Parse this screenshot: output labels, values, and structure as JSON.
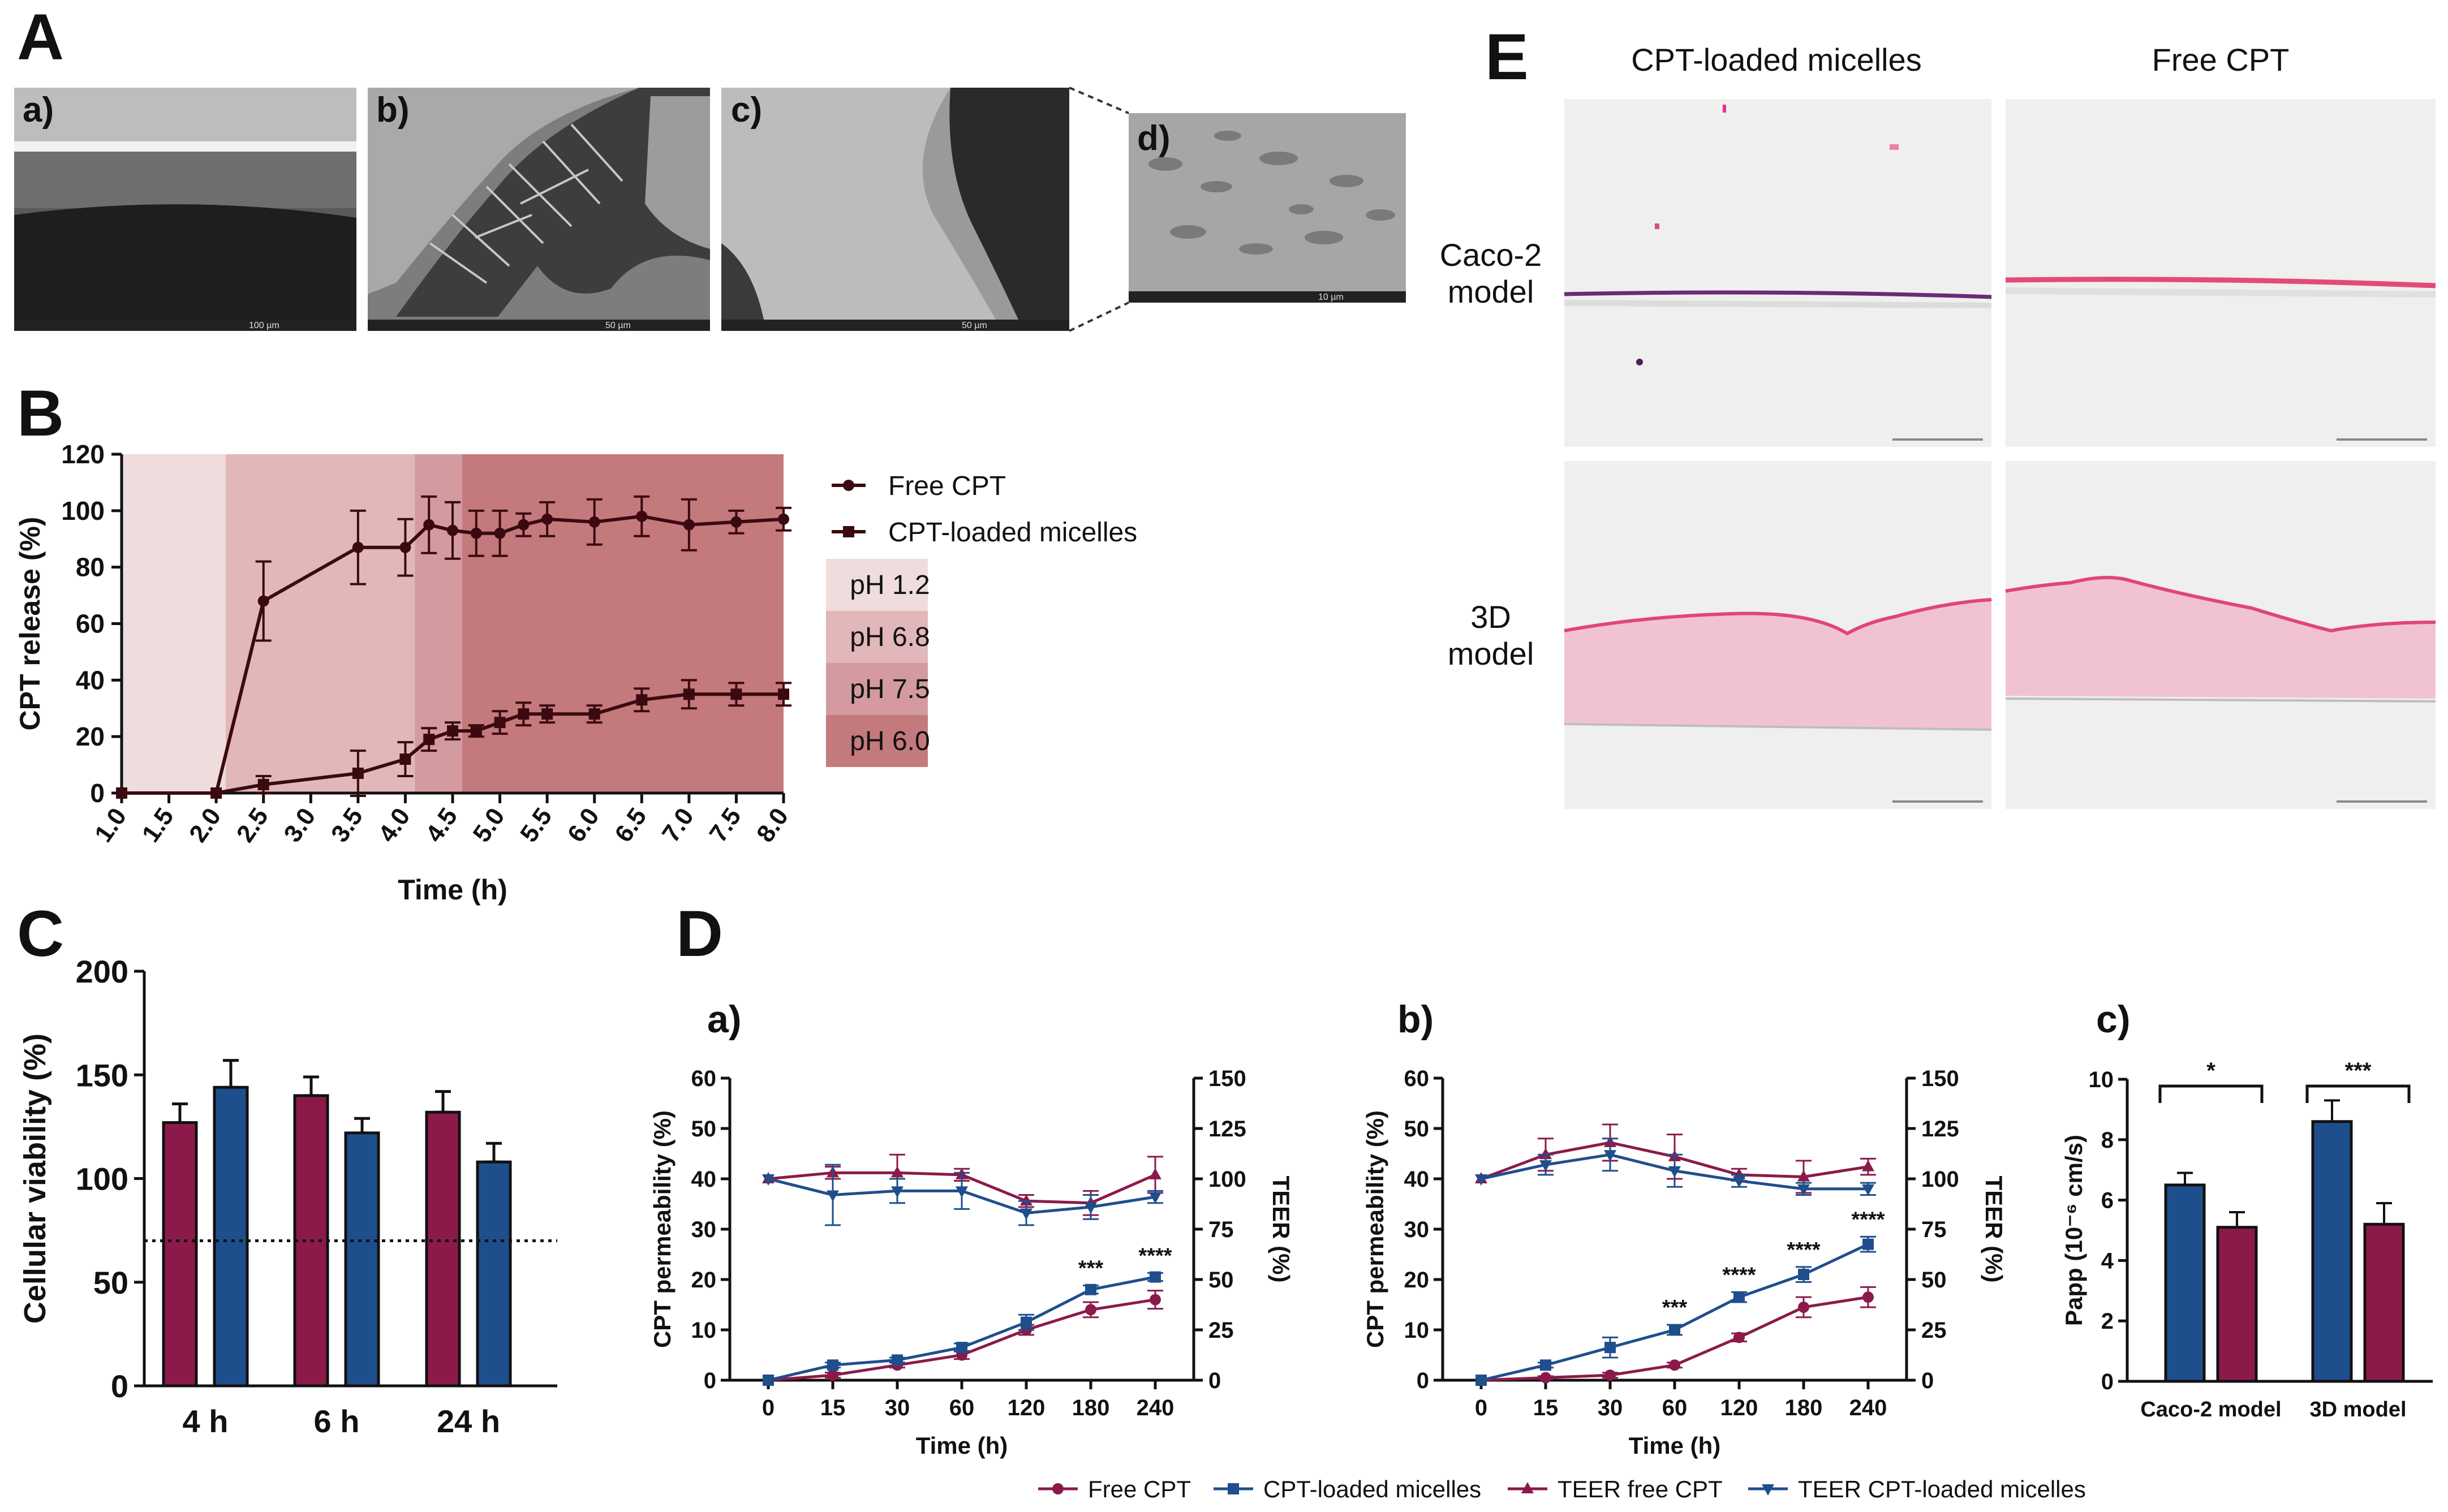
{
  "colors": {
    "maroon": "#8b1a4a",
    "navy": "#1f4e8c",
    "dark_curve": "#3a0a10",
    "ph12": "#efdcdd",
    "ph68": "#e2b7b9",
    "ph75": "#d39b9f",
    "ph60": "#c4797d",
    "micrograph": "#8c8c8c",
    "histo_bg": "#eeeeec",
    "histo_pink": "#e9a6b9"
  },
  "panel_labels": {
    "A": "A",
    "B": "B",
    "C": "C",
    "D": "D",
    "E": "E"
  },
  "panelA": {
    "labels": [
      "a)",
      "b)",
      "c)",
      "d)"
    ],
    "scale_texts": [
      "100 µm",
      "50 µm",
      "50 µm",
      "10 µm"
    ]
  },
  "panelE": {
    "col_titles": [
      "CPT-loaded micelles",
      "Free CPT"
    ],
    "row_titles": [
      [
        "Caco-2",
        "model"
      ],
      [
        "3D",
        "model"
      ]
    ]
  },
  "chart_data": [
    {
      "id": "B",
      "type": "line",
      "xlabel": "Time (h)",
      "ylabel": "CPT release (%)",
      "xlim": [
        1.0,
        8.0
      ],
      "ylim": [
        0,
        120
      ],
      "xticks": [
        "1.0",
        "1.5",
        "2.0",
        "2.5",
        "3.0",
        "3.5",
        "4.0",
        "4.5",
        "5.0",
        "5.5",
        "6.0",
        "6.5",
        "7.0",
        "7.5",
        "8.0"
      ],
      "yticks": [
        "0",
        "20",
        "40",
        "60",
        "80",
        "100",
        "120"
      ],
      "ph_regions": [
        {
          "label": "pH 1.2",
          "from": 1.0,
          "to": 2.1
        },
        {
          "label": "pH 6.8",
          "from": 2.1,
          "to": 4.1
        },
        {
          "label": "pH 7.5",
          "from": 4.1,
          "to": 4.6
        },
        {
          "label": "pH 6.0",
          "from": 4.6,
          "to": 8.0
        }
      ],
      "series": [
        {
          "name": "Free CPT",
          "marker": "circle",
          "x": [
            1.0,
            2.0,
            2.5,
            3.5,
            4.0,
            4.25,
            4.5,
            4.75,
            5.0,
            5.25,
            5.5,
            6.0,
            6.5,
            7.0,
            7.5,
            8.0
          ],
          "y": [
            0,
            0,
            68,
            87,
            87,
            95,
            93,
            92,
            92,
            95,
            97,
            96,
            98,
            95,
            96,
            97
          ],
          "err": [
            0,
            0,
            14,
            13,
            10,
            10,
            10,
            8,
            8,
            4,
            6,
            8,
            7,
            9,
            4,
            4
          ]
        },
        {
          "name": "CPT-loaded micelles",
          "marker": "square",
          "x": [
            1.0,
            2.0,
            2.5,
            3.5,
            4.0,
            4.25,
            4.5,
            4.75,
            5.0,
            5.25,
            5.5,
            6.0,
            6.5,
            7.0,
            7.5,
            8.0
          ],
          "y": [
            0,
            0,
            3,
            7,
            12,
            19,
            22,
            22,
            25,
            28,
            28,
            28,
            33,
            35,
            35,
            35
          ],
          "err": [
            0,
            0,
            3,
            8,
            6,
            4,
            3,
            2,
            4,
            4,
            3,
            3,
            4,
            5,
            4,
            4
          ]
        }
      ]
    },
    {
      "id": "C",
      "type": "bar",
      "ylabel": "Cellular viability (%)",
      "ylim": [
        0,
        200
      ],
      "yticks": [
        "0",
        "50",
        "100",
        "150",
        "200"
      ],
      "categories": [
        "4 h",
        "6 h",
        "24 h"
      ],
      "reference_line": 70,
      "series": [
        {
          "name": "Free CPT",
          "values": [
            127,
            140,
            132
          ],
          "err": [
            9,
            9,
            10
          ]
        },
        {
          "name": "CPT-loaded micelles",
          "values": [
            144,
            122,
            108
          ],
          "err": [
            13,
            7,
            9
          ]
        }
      ]
    },
    {
      "id": "Da",
      "type": "line",
      "label": "a)",
      "xlabel": "Time (h)",
      "ylabel": "CPT permeability (%)",
      "y2label": "TEER (%)",
      "categories": [
        "0",
        "15",
        "30",
        "60",
        "120",
        "180",
        "240"
      ],
      "ylim": [
        0,
        60
      ],
      "y2lim": [
        0,
        150
      ],
      "yticks": [
        "0",
        "10",
        "20",
        "30",
        "40",
        "50",
        "60"
      ],
      "y2ticks": [
        "0",
        "25",
        "50",
        "75",
        "100",
        "125",
        "150"
      ],
      "annotations": [
        {
          "index": 5,
          "text": "***"
        },
        {
          "index": 6,
          "text": "****"
        }
      ],
      "series": [
        {
          "name": "Free CPT",
          "axis": "left",
          "values": [
            0,
            1,
            3,
            5,
            10,
            14,
            16
          ],
          "err": [
            0,
            0.5,
            0.5,
            0.8,
            1,
            1.5,
            1.8
          ]
        },
        {
          "name": "CPT-loaded micelles",
          "axis": "left",
          "values": [
            0,
            3,
            4,
            6.5,
            11.5,
            18,
            20.5
          ],
          "err": [
            0,
            0.5,
            0.5,
            0.8,
            1.5,
            0.8,
            0.8
          ]
        },
        {
          "name": "TEER free CPT",
          "axis": "right",
          "values": [
            100,
            103,
            103,
            102,
            89,
            88,
            102
          ],
          "err": [
            0,
            3,
            9,
            3,
            3,
            6,
            9
          ]
        },
        {
          "name": "TEER CPT-loaded micelles",
          "axis": "right",
          "values": [
            100,
            92,
            94,
            94,
            83,
            86,
            91
          ],
          "err": [
            0,
            15,
            6,
            9,
            6,
            6,
            3
          ]
        }
      ]
    },
    {
      "id": "Db",
      "type": "line",
      "label": "b)",
      "xlabel": "Time (h)",
      "ylabel": "CPT permeability (%)",
      "y2label": "TEER (%)",
      "categories": [
        "0",
        "15",
        "30",
        "60",
        "120",
        "180",
        "240"
      ],
      "ylim": [
        0,
        60
      ],
      "y2lim": [
        0,
        150
      ],
      "yticks": [
        "0",
        "10",
        "20",
        "30",
        "40",
        "50",
        "60"
      ],
      "y2ticks": [
        "0",
        "25",
        "50",
        "75",
        "100",
        "125",
        "150"
      ],
      "annotations": [
        {
          "index": 3,
          "text": "***"
        },
        {
          "index": 4,
          "text": "****"
        },
        {
          "index": 5,
          "text": "****"
        },
        {
          "index": 6,
          "text": "****"
        }
      ],
      "series": [
        {
          "name": "Free CPT",
          "axis": "left",
          "values": [
            0,
            0.5,
            1,
            3,
            8.5,
            14.5,
            16.5
          ],
          "err": [
            0,
            0.3,
            0.5,
            0.5,
            0.8,
            2,
            2
          ]
        },
        {
          "name": "CPT-loaded micelles",
          "axis": "left",
          "values": [
            0,
            3,
            6.5,
            10,
            16.5,
            21,
            27
          ],
          "err": [
            0,
            0.5,
            2,
            1,
            1,
            1.5,
            1.5
          ]
        },
        {
          "name": "TEER free CPT",
          "axis": "right",
          "values": [
            100,
            112,
            118,
            111,
            102,
            101,
            106
          ],
          "err": [
            0,
            8,
            9,
            11,
            3,
            8,
            4
          ]
        },
        {
          "name": "TEER CPT-loaded micelles",
          "axis": "right",
          "values": [
            100,
            107,
            112,
            104,
            99,
            95,
            95
          ],
          "err": [
            0,
            5,
            8,
            8,
            3,
            3,
            3
          ]
        }
      ]
    },
    {
      "id": "Dc",
      "type": "bar",
      "label": "c)",
      "ylabel": "Papp (10⁻⁶ cm/s)",
      "ylim": [
        0,
        10
      ],
      "yticks": [
        "0",
        "2",
        "4",
        "6",
        "8",
        "10"
      ],
      "categories": [
        "Caco-2 model",
        "3D model"
      ],
      "annotations": [
        {
          "index": 0,
          "text": "*"
        },
        {
          "index": 1,
          "text": "***"
        }
      ],
      "series": [
        {
          "name": "CPT-loaded micelles",
          "values": [
            6.5,
            8.6
          ],
          "err": [
            0.4,
            0.7
          ]
        },
        {
          "name": "Free CPT",
          "values": [
            5.1,
            5.2
          ],
          "err": [
            0.5,
            0.7
          ]
        }
      ]
    }
  ],
  "legend_B": {
    "free": "Free CPT",
    "micelles": "CPT-loaded micelles",
    "ph": [
      "pH 1.2",
      "pH 6.8",
      "pH 7.5",
      "pH 6.0"
    ]
  },
  "legend_D": {
    "free": "Free CPT",
    "micelles": "CPT-loaded micelles",
    "teer_free": "TEER free CPT",
    "teer_micelles": "TEER CPT-loaded micelles"
  }
}
